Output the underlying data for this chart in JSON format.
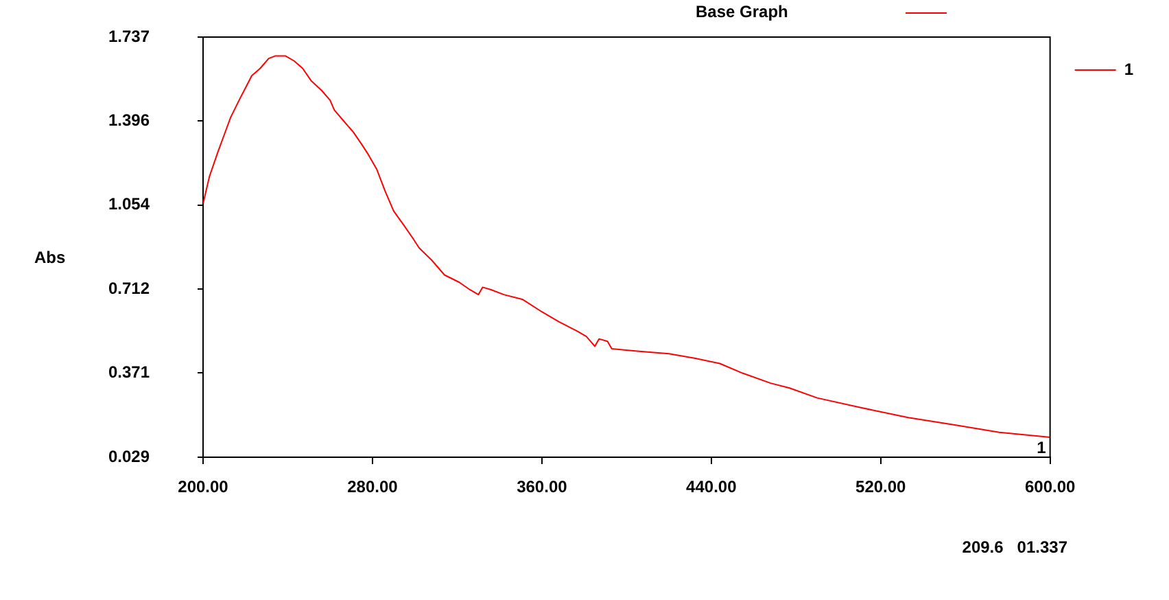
{
  "chart_data": {
    "type": "line",
    "ylabel": "Abs",
    "annotations": [
      "Base Graph",
      "209.6   01.337"
    ],
    "x": [
      200,
      203,
      207,
      210,
      213,
      217,
      220,
      223,
      227,
      231,
      234,
      239,
      243,
      247,
      251,
      256,
      260,
      262,
      266,
      271,
      275,
      278,
      282,
      286,
      290,
      295,
      299,
      302,
      308,
      314,
      321,
      326,
      330,
      332,
      336,
      342,
      351,
      360,
      368,
      377,
      381,
      385,
      387,
      391,
      393,
      405,
      420,
      433,
      444,
      455,
      468,
      477,
      490,
      511,
      533,
      555,
      576,
      600
    ],
    "series": [
      {
        "name": "1",
        "color": "#ff0000",
        "values": [
          1.06,
          1.17,
          1.27,
          1.34,
          1.41,
          1.48,
          1.53,
          1.58,
          1.61,
          1.65,
          1.66,
          1.66,
          1.64,
          1.61,
          1.56,
          1.52,
          1.48,
          1.44,
          1.4,
          1.35,
          1.3,
          1.26,
          1.2,
          1.11,
          1.03,
          0.97,
          0.92,
          0.88,
          0.83,
          0.77,
          0.74,
          0.71,
          0.69,
          0.72,
          0.71,
          0.69,
          0.67,
          0.62,
          0.58,
          0.54,
          0.52,
          0.48,
          0.51,
          0.5,
          0.47,
          0.46,
          0.45,
          0.43,
          0.41,
          0.37,
          0.33,
          0.31,
          0.27,
          0.23,
          0.19,
          0.16,
          0.13,
          0.11
        ]
      }
    ],
    "xlim": [
      200,
      600
    ],
    "xticks": [
      {
        "value": 200,
        "label": "200.00"
      },
      {
        "value": 280,
        "label": "280.00"
      },
      {
        "value": 360,
        "label": "360.00"
      },
      {
        "value": 440,
        "label": "440.00"
      },
      {
        "value": 520,
        "label": "520.00"
      },
      {
        "value": 600,
        "label": "600.00"
      }
    ],
    "ylim": [
      0.029,
      1.737
    ],
    "yticks": [
      0.029,
      0.371,
      0.712,
      1.054,
      1.396,
      1.737
    ],
    "grid": false,
    "legend": "right",
    "marker": "none"
  }
}
